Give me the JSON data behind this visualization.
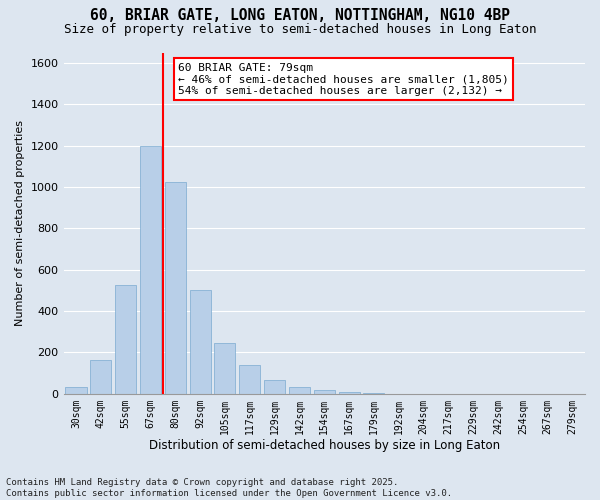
{
  "title_line1": "60, BRIAR GATE, LONG EATON, NOTTINGHAM, NG10 4BP",
  "title_line2": "Size of property relative to semi-detached houses in Long Eaton",
  "xlabel": "Distribution of semi-detached houses by size in Long Eaton",
  "ylabel": "Number of semi-detached properties",
  "categories": [
    "30sqm",
    "42sqm",
    "55sqm",
    "67sqm",
    "80sqm",
    "92sqm",
    "105sqm",
    "117sqm",
    "129sqm",
    "142sqm",
    "154sqm",
    "167sqm",
    "179sqm",
    "192sqm",
    "204sqm",
    "217sqm",
    "229sqm",
    "242sqm",
    "254sqm",
    "267sqm",
    "279sqm"
  ],
  "values": [
    35,
    165,
    525,
    1200,
    1025,
    500,
    245,
    140,
    65,
    35,
    20,
    10,
    5,
    0,
    0,
    0,
    0,
    0,
    0,
    0,
    0
  ],
  "bar_color": "#b8cfe8",
  "bar_edge_color": "#7aaad0",
  "annotation_text": "60 BRIAR GATE: 79sqm\n← 46% of semi-detached houses are smaller (1,805)\n54% of semi-detached houses are larger (2,132) →",
  "annotation_box_color": "white",
  "annotation_box_edge_color": "red",
  "vline_color": "red",
  "vline_x_index": 4,
  "ylim": [
    0,
    1650
  ],
  "yticks": [
    0,
    200,
    400,
    600,
    800,
    1000,
    1200,
    1400,
    1600
  ],
  "background_color": "#dde6f0",
  "grid_color": "white",
  "footnote": "Contains HM Land Registry data © Crown copyright and database right 2025.\nContains public sector information licensed under the Open Government Licence v3.0.",
  "title_fontsize": 10.5,
  "subtitle_fontsize": 9,
  "annotation_fontsize": 8,
  "footnote_fontsize": 6.5,
  "xlabel_fontsize": 8.5,
  "ylabel_fontsize": 8
}
